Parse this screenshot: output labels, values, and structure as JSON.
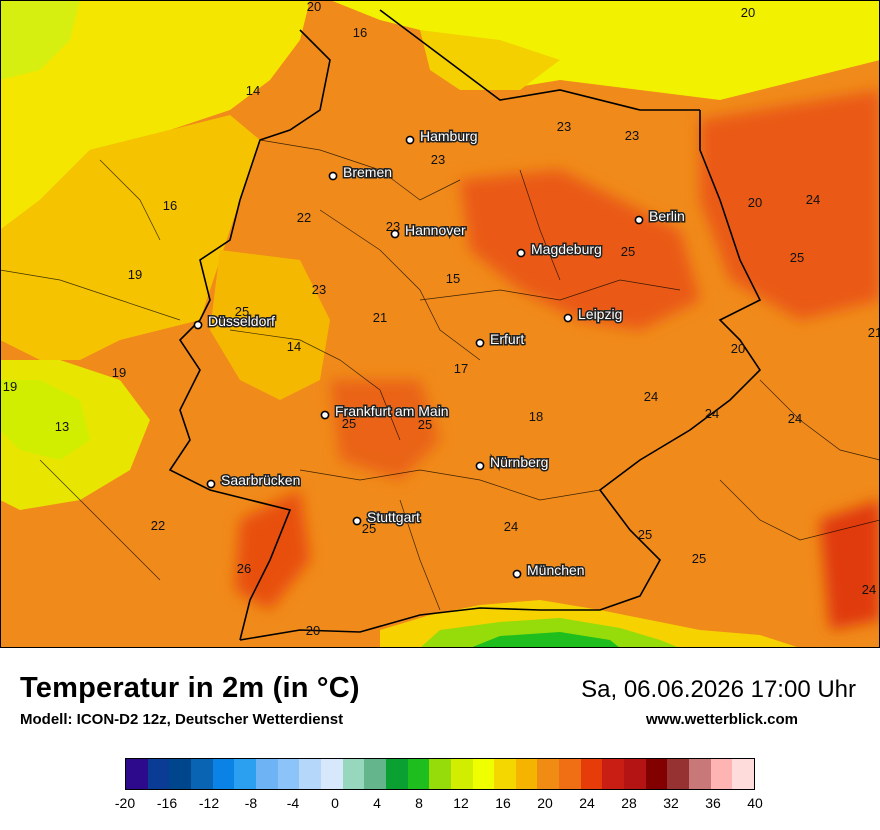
{
  "map": {
    "cities": [
      {
        "name": "Hamburg"
      },
      {
        "name": "Bremen"
      },
      {
        "name": "Hannover"
      },
      {
        "name": "Berlin"
      },
      {
        "name": "Magdeburg"
      },
      {
        "name": "Düsseldorf"
      },
      {
        "name": "Leipzig"
      },
      {
        "name": "Erfurt"
      },
      {
        "name": "Frankfurt am Main"
      },
      {
        "name": "Nürnberg"
      },
      {
        "name": "Saarbrücken"
      },
      {
        "name": "Stuttgart"
      },
      {
        "name": "München"
      }
    ],
    "temperature_labels": [
      "20",
      "16",
      "20",
      "14",
      "23",
      "23",
      "23",
      "22",
      "23",
      "16",
      "20",
      "24",
      "25",
      "25",
      "19",
      "23",
      "15",
      "21",
      "25",
      "21",
      "14",
      "19",
      "17",
      "19",
      "24",
      "24",
      "24",
      "13",
      "25",
      "25",
      "18",
      "22",
      "24",
      "25",
      "25",
      "25",
      "26",
      "24",
      "20",
      "20"
    ]
  },
  "footer": {
    "title": "Temperatur in 2m (in °C)",
    "subtitle": "Modell: ICON-D2 12z, Deutscher Wetterdienst",
    "datetime": "Sa, 06.06.2026 17:00 Uhr",
    "website": "www.wetterblick.com"
  },
  "legend": {
    "ticks": [
      "-20",
      "-16",
      "-12",
      "-8",
      "-4",
      "0",
      "4",
      "8",
      "12",
      "16",
      "20",
      "24",
      "28",
      "32",
      "36",
      "40"
    ],
    "colors": [
      "#2d0a8c",
      "#0a3c96",
      "#00468c",
      "#0a64b4",
      "#0a82e6",
      "#2ca0f0",
      "#6eb4f5",
      "#8cc3f8",
      "#b4d7fa",
      "#d7e8fc",
      "#96d7be",
      "#64b48c",
      "#0aa032",
      "#1ebe1e",
      "#96dc0a",
      "#d2ee00",
      "#f0ff00",
      "#f5d700",
      "#f5b400",
      "#f08c14",
      "#f06e14",
      "#e63c0a",
      "#c81e14",
      "#b41414",
      "#820000",
      "#963232",
      "#c87878",
      "#ffb4b4",
      "#ffdcdc"
    ]
  }
}
